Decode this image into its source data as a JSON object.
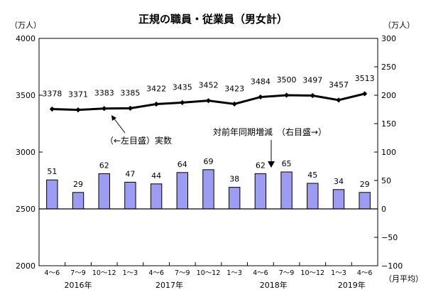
{
  "chart_data": {
    "type": "bar+line",
    "title": "正規の職員・従業員（男女計）",
    "left_unit": "（万人）",
    "right_unit": "（万人）",
    "x_unit": "（月平均）",
    "categories": [
      "4～6",
      "7～9",
      "10～12",
      "1～3",
      "4～6",
      "7～9",
      "10～12",
      "1～3",
      "4～6",
      "7～9",
      "10～12",
      "1～3",
      "4～6"
    ],
    "years": [
      {
        "label": "2016年",
        "from": 0,
        "to": 2
      },
      {
        "label": "2017年",
        "from": 3,
        "to": 6
      },
      {
        "label": "2018年",
        "from": 7,
        "to": 10
      },
      {
        "label": "2019年",
        "from": 11,
        "to": 12
      }
    ],
    "left_axis": {
      "ylim": [
        2000,
        4000
      ],
      "ticks": [
        2000,
        2500,
        3000,
        3500,
        4000
      ]
    },
    "right_axis": {
      "ylim": [
        -100,
        300
      ],
      "ticks": [
        -100,
        -50,
        0,
        50,
        100,
        150,
        200,
        250,
        300
      ]
    },
    "series": [
      {
        "kind": "line",
        "axis": "left",
        "values": [
          3378,
          3371,
          3383,
          3385,
          3422,
          3435,
          3452,
          3423,
          3484,
          3500,
          3497,
          3457,
          3513
        ]
      },
      {
        "kind": "bar",
        "axis": "right",
        "values": [
          51,
          29,
          62,
          47,
          44,
          64,
          69,
          38,
          62,
          65,
          45,
          34,
          29
        ]
      }
    ],
    "annotations": [
      {
        "text": "（←左目盛）実数"
      },
      {
        "text": "対前年同期増減　（右目盛→）"
      }
    ],
    "colors": {
      "bar_fill": "#9c9cf2",
      "bar_stroke": "#000000",
      "line": "#000000"
    }
  }
}
